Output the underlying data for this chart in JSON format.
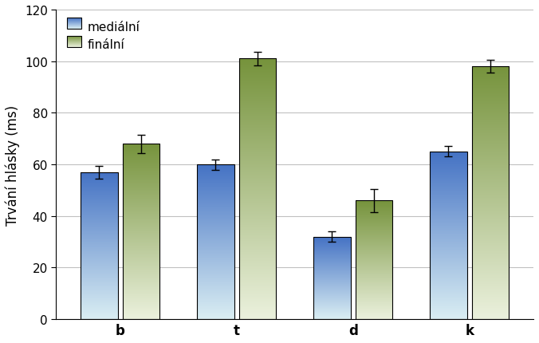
{
  "categories": [
    "b",
    "t",
    "d",
    "k"
  ],
  "medial_values": [
    57.0,
    60.0,
    32.0,
    65.0
  ],
  "final_values": [
    68.0,
    101.0,
    46.0,
    98.0
  ],
  "medial_errors": [
    2.5,
    2.0,
    2.0,
    2.0
  ],
  "final_errors": [
    3.5,
    2.5,
    4.5,
    2.5
  ],
  "ylim": [
    0,
    120
  ],
  "yticks": [
    0,
    20,
    40,
    60,
    80,
    100,
    120
  ],
  "ylabel": "Trvání hlásky (ms)",
  "legend_medial": "mediální",
  "legend_final": "finální",
  "bar_width": 0.32,
  "bar_gap": 0.04,
  "blue_top": "#4472C4",
  "blue_bottom": "#DAEEF3",
  "green_top": "#76933C",
  "green_bottom": "#EBF1DD",
  "edge_color": "#000000",
  "grid_color": "#C0C0C0",
  "background_color": "#FFFFFF",
  "fig_bg_color": "#FFFFFF"
}
